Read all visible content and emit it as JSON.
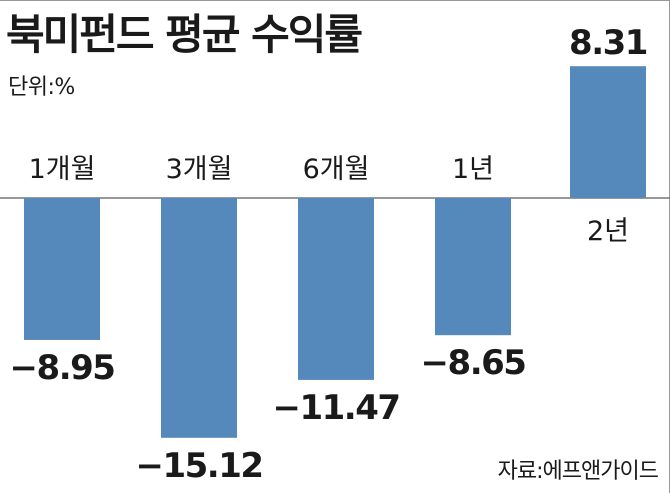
{
  "title": "북미펀드 평균 수익률",
  "unit_label": "단위:%",
  "source": "자료:에프앤가이드",
  "colors": {
    "bar": "#5588bb",
    "axis": "#777777",
    "text": "#1a1a1a"
  },
  "chart_data": {
    "type": "bar",
    "title": "북미펀드 평균 수익률",
    "unit": "단위:%",
    "categories": [
      "1개월",
      "3개월",
      "6개월",
      "1년",
      "2년"
    ],
    "values": [
      -8.95,
      -15.12,
      -11.47,
      -8.65,
      8.31
    ],
    "value_labels": [
      "−8.95",
      "−15.12",
      "−11.47",
      "−8.65",
      "8.31"
    ],
    "xlabel": "",
    "ylabel": "",
    "ylim": [
      -15.12,
      8.31
    ],
    "grid": false,
    "legend": "none"
  }
}
